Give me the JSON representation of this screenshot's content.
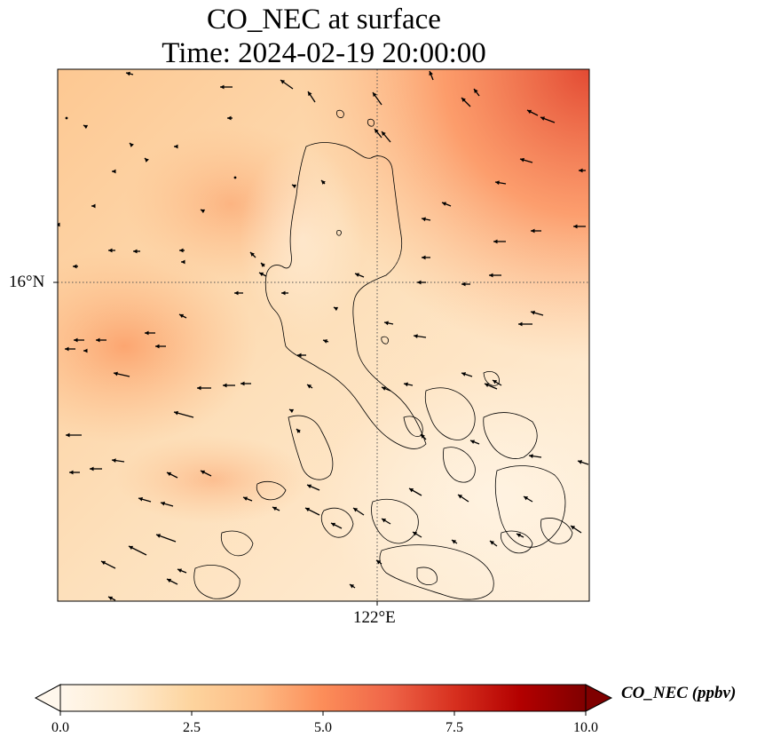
{
  "title_line1": "CO_NEC at surface",
  "title_line2": "Time: 2024-02-19 20:00:00",
  "axes": {
    "lat_tick": "16°N",
    "lon_tick": "122°E"
  },
  "colorbar": {
    "label": "CO_NEC (ppbv)",
    "ticks": [
      "0.0",
      "2.5",
      "5.0",
      "7.5",
      "10.0"
    ],
    "min": 0,
    "max": 10,
    "colormap": "OrRd",
    "extend": "both"
  },
  "colors": {
    "low": "#fff7ec",
    "mid": "#fdd49e",
    "high": "#ef6548",
    "max": "#7f0000"
  }
}
